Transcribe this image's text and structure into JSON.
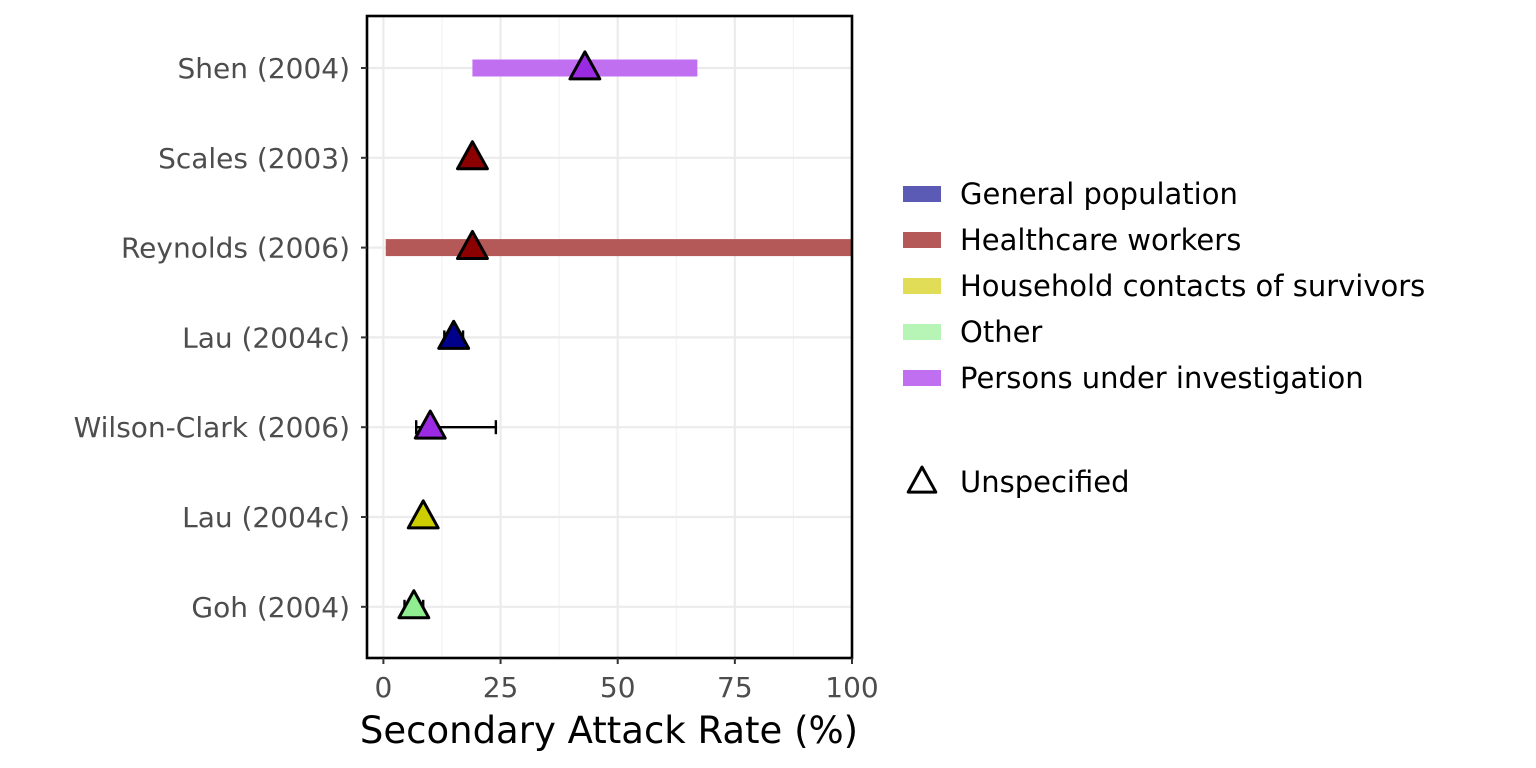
{
  "chart_data": {
    "type": "forest",
    "xlabel": "Secondary Attack Rate (%)",
    "ylabel": "",
    "xlim": [
      -3.5,
      100
    ],
    "x_ticks": [
      0,
      25,
      50,
      75,
      100
    ],
    "x_tick_labels": [
      "0",
      "25",
      "50",
      "75",
      "100"
    ],
    "grid": true,
    "legend_position": "right",
    "legend": {
      "groups": [
        {
          "name": "General population",
          "color": "#5b5bb5"
        },
        {
          "name": "Healthcare workers",
          "color": "#b55858"
        },
        {
          "name": "Household contacts of survivors",
          "color": "#e1dd56"
        },
        {
          "name": "Other",
          "color": "#b6f5b6"
        },
        {
          "name": "Persons under investigation",
          "color": "#c06ff0"
        }
      ],
      "shape_entries": [
        {
          "name": "Unspecified",
          "shape": "triangle"
        }
      ]
    },
    "studies": [
      {
        "label": "Shen (2004)",
        "group": "Persons under investigation",
        "estimate": 43,
        "ci_low": 19,
        "ci_high": 67,
        "interval_style": "band",
        "point_color": "#9a2be2"
      },
      {
        "label": "Scales (2003)",
        "group": "Healthcare workers",
        "estimate": 19,
        "ci_low": null,
        "ci_high": null,
        "interval_style": "none",
        "point_color": "#8b0000"
      },
      {
        "label": "Reynolds (2006)",
        "group": "Healthcare workers",
        "estimate": 19,
        "ci_low": 0.5,
        "ci_high": 100,
        "interval_style": "band",
        "point_color": "#8b0000"
      },
      {
        "label": "Lau (2004c)",
        "group": "General population",
        "estimate": 15,
        "ci_low": 13,
        "ci_high": 17,
        "interval_style": "errorbar",
        "point_color": "#00008b"
      },
      {
        "label": "Wilson-Clark (2006)",
        "group": "Persons under investigation",
        "estimate": 10,
        "ci_low": 7,
        "ci_high": 24,
        "interval_style": "errorbar",
        "point_color": "#9a2be2"
      },
      {
        "label": "Lau (2004c)",
        "group": "Household contacts of survivors",
        "estimate": 8.5,
        "ci_low": null,
        "ci_high": null,
        "interval_style": "none",
        "point_color": "#cdcd00"
      },
      {
        "label": "Goh (2004)",
        "group": "Other",
        "estimate": 6.5,
        "ci_low": 4.5,
        "ci_high": 8.5,
        "interval_style": "errorbar",
        "point_color": "#90ee90"
      }
    ]
  }
}
